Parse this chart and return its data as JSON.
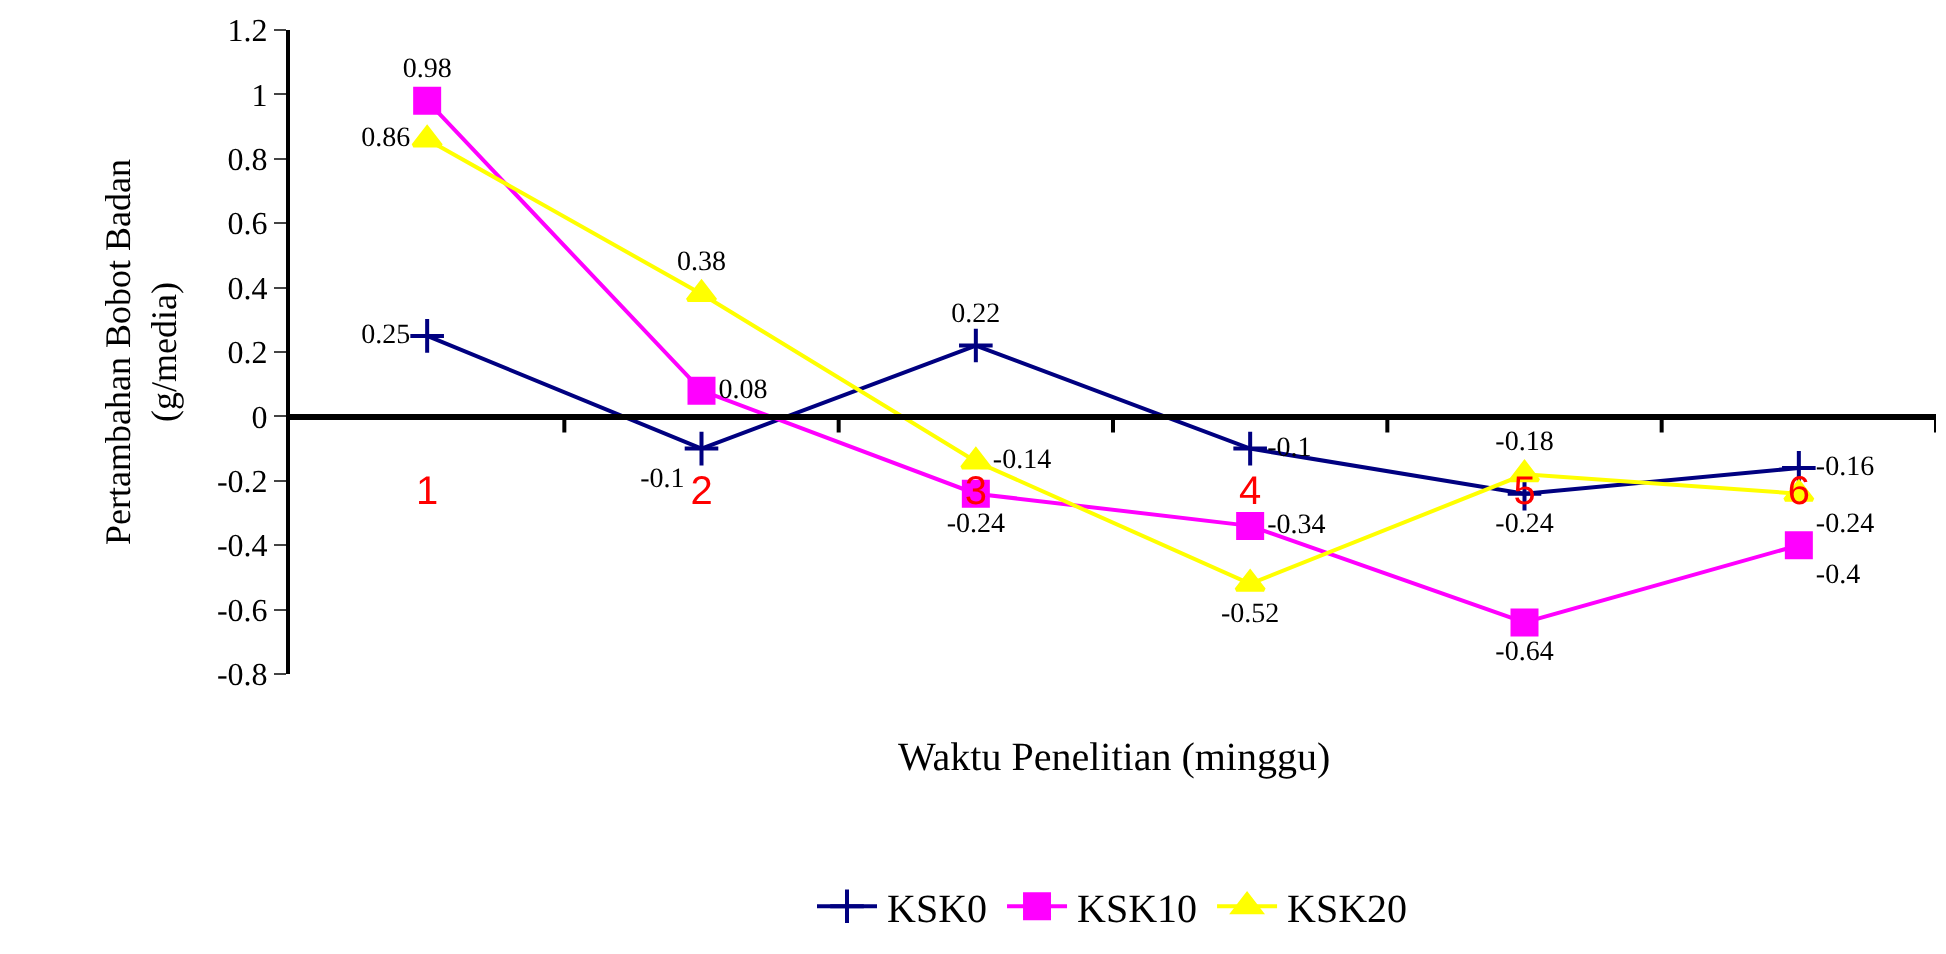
{
  "chart_data": {
    "type": "line",
    "xlabel": "Waktu Penelitian (minggu)",
    "ylabel": "Pertambahan Bobot Badan\n(g/media)",
    "categories": [
      "1",
      "2",
      "3",
      "4",
      "5",
      "6"
    ],
    "series": [
      {
        "name": "KSK0",
        "color": "#000080",
        "marker": "cross",
        "values": [
          0.25,
          -0.1,
          0.22,
          -0.1,
          -0.24,
          -0.16
        ]
      },
      {
        "name": "KSK10",
        "color": "#ff00ff",
        "marker": "square",
        "values": [
          0.98,
          0.08,
          -0.24,
          -0.34,
          -0.64,
          -0.4
        ]
      },
      {
        "name": "KSK20",
        "color": "#ffff00",
        "marker": "triangle",
        "values": [
          0.86,
          0.38,
          -0.14,
          -0.52,
          -0.18,
          -0.24
        ]
      }
    ],
    "ylim": [
      -0.8,
      1.2
    ],
    "yticks": [
      -0.8,
      -0.6,
      -0.4,
      -0.2,
      0,
      0.2,
      0.4,
      0.6,
      0.8,
      1,
      1.2
    ],
    "data_labels": true,
    "legend": "bottom"
  }
}
